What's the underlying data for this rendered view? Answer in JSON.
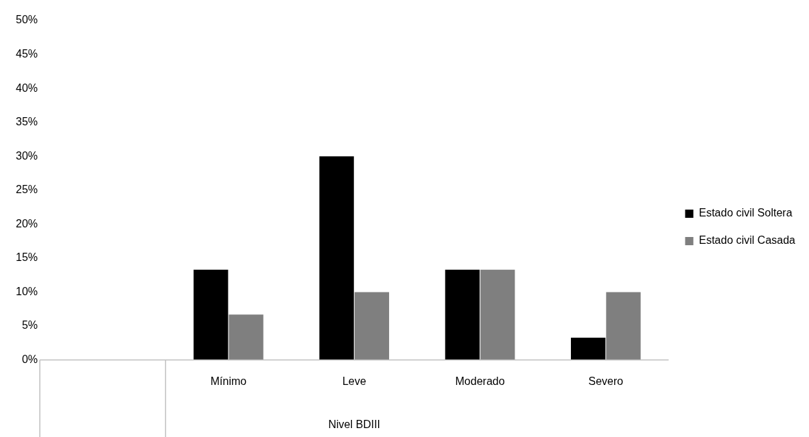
{
  "chart_data": {
    "type": "bar",
    "xlabel": "Nivel BDIII",
    "categories": [
      null,
      "Mínimo",
      "Leve",
      "Moderado",
      "Severo"
    ],
    "series": [
      {
        "name": "Estado civil Soltera",
        "color": "#000000",
        "values": [
          null,
          13.3,
          30,
          13.3,
          3.3
        ]
      },
      {
        "name": "Estado civil Casada",
        "color": "#7f7f7f",
        "values": [
          null,
          6.7,
          10,
          13.3,
          10
        ]
      }
    ],
    "ylim": [
      0,
      50
    ],
    "yticks": [
      {
        "value": 0,
        "label": "0%"
      },
      {
        "value": 5,
        "label": "5%"
      },
      {
        "value": 10,
        "label": "10%"
      },
      {
        "value": 15,
        "label": "15%"
      },
      {
        "value": 20,
        "label": "20%"
      },
      {
        "value": 25,
        "label": "25%"
      },
      {
        "value": 30,
        "label": "30%"
      },
      {
        "value": 35,
        "label": "35%"
      },
      {
        "value": 40,
        "label": "40%"
      },
      {
        "value": 45,
        "label": "45%"
      },
      {
        "value": 50,
        "label": "50%"
      }
    ],
    "grid": false,
    "legend": "right"
  }
}
